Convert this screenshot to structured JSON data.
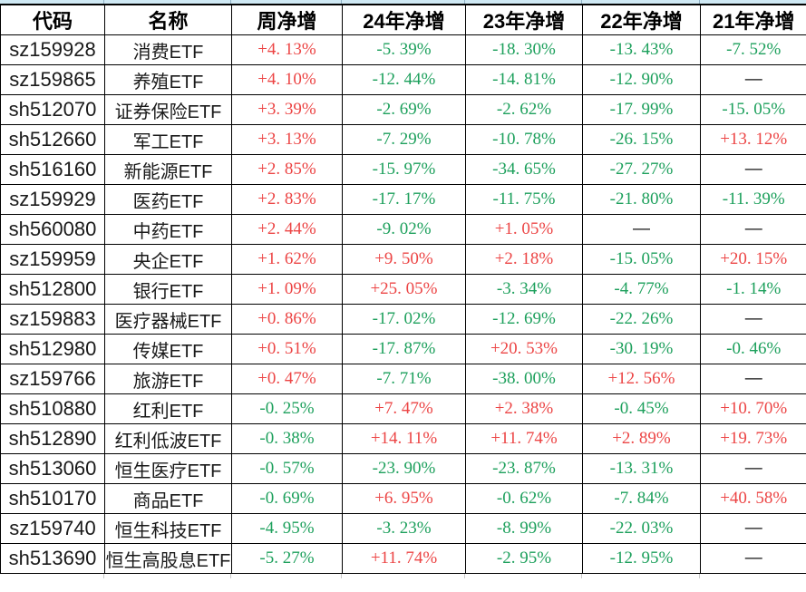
{
  "colors": {
    "positive": "#ec4545",
    "negative": "#1da05c",
    "dash": "#111111",
    "border": "#000000",
    "top_strip": "#cfe9f4"
  },
  "table": {
    "columns": [
      {
        "key": "code",
        "label": "代码"
      },
      {
        "key": "name",
        "label": "名称"
      },
      {
        "key": "week",
        "label": "周净增"
      },
      {
        "key": "y24",
        "label": "24年净增"
      },
      {
        "key": "y23",
        "label": "23年净增"
      },
      {
        "key": "y22",
        "label": "22年净增"
      },
      {
        "key": "y21",
        "label": "21年净增"
      }
    ],
    "rows": [
      {
        "code": "sz159928",
        "name": "消费ETF",
        "week": "+4. 13%",
        "y24": "-5. 39%",
        "y23": "-18. 30%",
        "y22": "-13. 43%",
        "y21": "-7. 52%"
      },
      {
        "code": "sz159865",
        "name": "养殖ETF",
        "week": "+4. 10%",
        "y24": "-12. 44%",
        "y23": "-14. 81%",
        "y22": "-12. 90%",
        "y21": "—"
      },
      {
        "code": "sh512070",
        "name": "证券保险ETF",
        "week": "+3. 39%",
        "y24": "-2. 69%",
        "y23": "-2. 62%",
        "y22": "-17. 99%",
        "y21": "-15. 05%"
      },
      {
        "code": "sh512660",
        "name": "军工ETF",
        "week": "+3. 13%",
        "y24": "-7. 29%",
        "y23": "-10. 78%",
        "y22": "-26. 15%",
        "y21": "+13. 12%"
      },
      {
        "code": "sh516160",
        "name": "新能源ETF",
        "week": "+2. 85%",
        "y24": "-15. 97%",
        "y23": "-34. 65%",
        "y22": "-27. 27%",
        "y21": "—"
      },
      {
        "code": "sz159929",
        "name": "医药ETF",
        "week": "+2. 83%",
        "y24": "-17. 17%",
        "y23": "-11. 75%",
        "y22": "-21. 80%",
        "y21": "-11. 39%"
      },
      {
        "code": "sh560080",
        "name": "中药ETF",
        "week": "+2. 44%",
        "y24": "-9. 02%",
        "y23": "+1. 05%",
        "y22": "—",
        "y21": "—"
      },
      {
        "code": "sz159959",
        "name": "央企ETF",
        "week": "+1. 62%",
        "y24": "+9. 50%",
        "y23": "+2. 18%",
        "y22": "-15. 05%",
        "y21": "+20. 15%"
      },
      {
        "code": "sh512800",
        "name": "银行ETF",
        "week": "+1. 09%",
        "y24": "+25. 05%",
        "y23": "-3. 34%",
        "y22": "-4. 77%",
        "y21": "-1. 14%"
      },
      {
        "code": "sz159883",
        "name": "医疗器械ETF",
        "week": "+0. 86%",
        "y24": "-17. 02%",
        "y23": "-12. 69%",
        "y22": "-22. 26%",
        "y21": "—"
      },
      {
        "code": "sh512980",
        "name": "传媒ETF",
        "week": "+0. 51%",
        "y24": "-17. 87%",
        "y23": "+20. 53%",
        "y22": "-30. 19%",
        "y21": "-0. 46%"
      },
      {
        "code": "sz159766",
        "name": "旅游ETF",
        "week": "+0. 47%",
        "y24": "-7. 71%",
        "y23": "-38. 00%",
        "y22": "+12. 56%",
        "y21": "—"
      },
      {
        "code": "sh510880",
        "name": "红利ETF",
        "week": "-0. 25%",
        "y24": "+7. 47%",
        "y23": "+2. 38%",
        "y22": "-0. 45%",
        "y21": "+10. 70%"
      },
      {
        "code": "sh512890",
        "name": "红利低波ETF",
        "week": "-0. 38%",
        "y24": "+14. 11%",
        "y23": "+11. 74%",
        "y22": "+2. 89%",
        "y21": "+19. 73%"
      },
      {
        "code": "sh513060",
        "name": "恒生医疗ETF",
        "week": "-0. 57%",
        "y24": "-23. 90%",
        "y23": "-23. 87%",
        "y22": "-13. 31%",
        "y21": "—"
      },
      {
        "code": "sh510170",
        "name": "商品ETF",
        "week": "-0. 69%",
        "y24": "+6. 95%",
        "y23": "-0. 62%",
        "y22": "-7. 84%",
        "y21": "+40. 58%"
      },
      {
        "code": "sz159740",
        "name": "恒生科技ETF",
        "week": "-4. 95%",
        "y24": "-3. 23%",
        "y23": "-8. 99%",
        "y22": "-22. 03%",
        "y21": "—"
      },
      {
        "code": "sh513690",
        "name": "恒生高股息ETF",
        "week": "-5. 27%",
        "y24": "+11. 74%",
        "y23": "-2. 95%",
        "y22": "-12. 95%",
        "y21": "—"
      }
    ]
  }
}
